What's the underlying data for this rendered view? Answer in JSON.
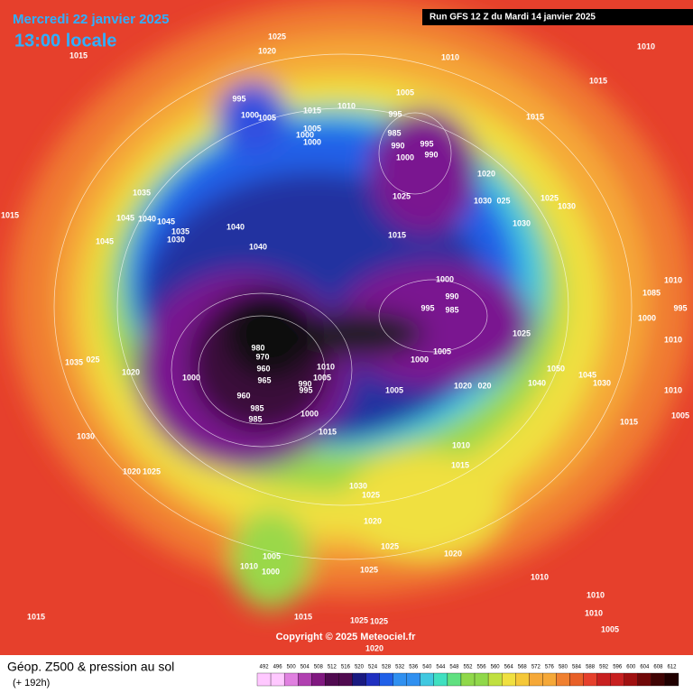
{
  "header": {
    "date": "Mercredi 22 janvier 2025",
    "time": "13:00 locale",
    "run": "Run GFS 12 Z du Mardi 14 janvier 2025"
  },
  "map": {
    "isobar_labels": [
      "1025",
      "1020",
      "1015",
      "1010",
      "1010",
      "1015",
      "995",
      "1000",
      "1005",
      "1015",
      "1010",
      "1005",
      "995",
      "1005",
      "1000",
      "1000",
      "985",
      "990",
      "995",
      "990",
      "1000",
      "1015",
      "1020",
      "1035",
      "1025",
      "1030",
      "025",
      "1025",
      "1030",
      "1015",
      "1045",
      "1040",
      "1045",
      "1035",
      "1030",
      "1040",
      "1030",
      "1015",
      "1045",
      "1040",
      "1010",
      "1000",
      "990",
      "995",
      "985",
      "1085",
      "995",
      "1000",
      "1025",
      "1010",
      "980",
      "970",
      "1005",
      "1000",
      "960",
      "1010",
      "1005",
      "1000",
      "965",
      "1035",
      "025",
      "1020",
      "1050",
      "1045",
      "1040",
      "1030",
      "1020",
      "020",
      "990",
      "995",
      "960",
      "1005",
      "1010",
      "985",
      "1000",
      "985",
      "1015",
      "1005",
      "1015",
      "1030",
      "1010",
      "1015",
      "1020",
      "1025",
      "1030",
      "1025",
      "1020",
      "1025",
      "1020",
      "1005",
      "1010",
      "1000",
      "1025",
      "1010",
      "1010",
      "1010",
      "1015",
      "1015",
      "1025",
      "1025",
      "1005",
      "1020"
    ],
    "copyright": "Copyright © 2025 Meteociel.fr"
  },
  "footer": {
    "title": "Géop. Z500 & pression au sol",
    "lead": "(+ 192h)"
  },
  "legend": {
    "labels": [
      "492",
      "496",
      "500",
      "504",
      "508",
      "512",
      "516",
      "520",
      "524",
      "528",
      "532",
      "536",
      "540",
      "544",
      "548",
      "552",
      "556",
      "560",
      "564",
      "568",
      "572",
      "576",
      "580",
      "584",
      "588",
      "592",
      "596",
      "600",
      "604",
      "608",
      "612"
    ]
  }
}
